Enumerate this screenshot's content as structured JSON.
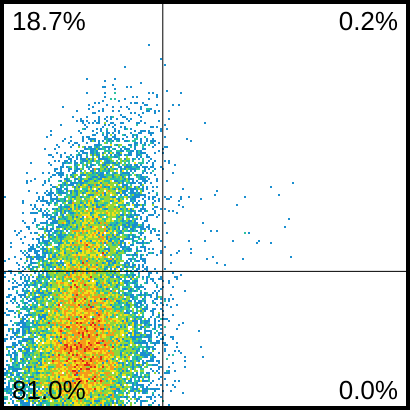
{
  "chart_data": {
    "type": "scatter",
    "subtype": "flow-cytometry-density-dot-plot",
    "title": "",
    "xlabel": "",
    "ylabel": "",
    "xlim": [
      0,
      1
    ],
    "ylim": [
      0,
      1
    ],
    "gates": {
      "x": 0.395,
      "y": 0.335
    },
    "grid": false,
    "legend": "none",
    "quadrants": [
      {
        "name": "upper-left",
        "label": "18.7%",
        "percent": 18.7
      },
      {
        "name": "upper-right",
        "label": "0.2%",
        "percent": 0.2
      },
      {
        "name": "lower-left",
        "label": "81.0%",
        "percent": 81.0
      },
      {
        "name": "lower-right",
        "label": "0.0%",
        "percent": 0.0
      }
    ],
    "population_clusters": [
      {
        "name": "main",
        "center": [
          0.205,
          0.16
        ],
        "spread": [
          0.075,
          0.11
        ],
        "weight": 0.62
      },
      {
        "name": "upper-tail",
        "center": [
          0.215,
          0.44
        ],
        "spread": [
          0.06,
          0.12
        ],
        "weight": 0.3
      },
      {
        "name": "base",
        "center": [
          0.12,
          0.06
        ],
        "spread": [
          0.08,
          0.05
        ],
        "weight": 0.08
      }
    ],
    "density_colormap": [
      "#1a3fbf",
      "#1a8fd0",
      "#2cc2a0",
      "#8fd63a",
      "#f2e21a",
      "#f59a1a",
      "#e02a1a"
    ]
  },
  "colors": {
    "frame": "#000000",
    "gate_lines": "#000000",
    "background": "#ffffff"
  }
}
